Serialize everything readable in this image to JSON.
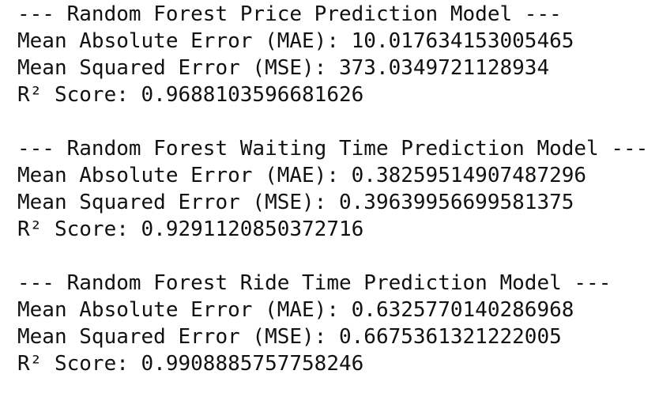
{
  "sections": [
    {
      "header": "--- Random Forest Price Prediction Model ---",
      "lines": [
        "Mean Absolute Error (MAE): 10.017634153005465",
        "Mean Squared Error (MSE): 373.0349721128934",
        "R² Score: 0.9688103596681626"
      ]
    },
    {
      "header": "--- Random Forest Waiting Time Prediction Model ---",
      "lines": [
        "Mean Absolute Error (MAE): 0.38259514907487296",
        "Mean Squared Error (MSE): 0.39639956699581375",
        "R² Score: 0.9291120850372716"
      ]
    },
    {
      "header": "--- Random Forest Ride Time Prediction Model ---",
      "lines": [
        "Mean Absolute Error (MAE): 0.6325770140286968",
        "Mean Squared Error (MSE): 0.6675361321222005",
        "R² Score: 0.9908885757758246"
      ]
    }
  ]
}
